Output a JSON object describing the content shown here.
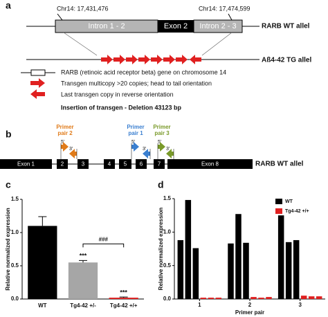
{
  "panel_a": {
    "label": "a",
    "chr_start": "Chr14: 17,431,476",
    "chr_end": "Chr14: 17,474,599",
    "intron_1": "Intron 1 - 2",
    "exon_2": "Exon 2",
    "intron_2": "Intron 2 - 3",
    "wt_allele": "RARB WT allel",
    "tg_allele": "Aß4-42 TG allel",
    "legend": [
      "RARB (retinoic acid receptor beta) gene on chromosome 14",
      "Transgen multicopy >20 copies; head to tail orientation",
      "Last transgen copy in reverse orientation"
    ],
    "insertion": "Insertion of transgen - Deletion 43123 bp"
  },
  "panel_b": {
    "label": "b",
    "exons": [
      "Exon 1",
      "2",
      "3",
      "4",
      "5",
      "6",
      "7",
      "Exon 8"
    ],
    "allele": "RARB WT allel",
    "primers": [
      {
        "name": [
          "Primer",
          "pair 2"
        ],
        "color": "#e07b1a",
        "ends": [
          "5'",
          "3'"
        ]
      },
      {
        "name": [
          "Primer",
          "pair 1"
        ],
        "color": "#3a7fd0",
        "ends": [
          "5'",
          "3'"
        ]
      },
      {
        "name": [
          "Primer",
          "pair 3"
        ],
        "color": "#7a9a2a",
        "ends": [
          "5'",
          "3'"
        ]
      }
    ]
  },
  "panel_c_label": "c",
  "panel_d_label": "d",
  "chart_data": [
    {
      "type": "bar",
      "ylabel": "Relative normalized expression",
      "categories": [
        "WT",
        "Tg4-42 +/-",
        "Tg4-42 +/+"
      ],
      "values": [
        1.1,
        0.55,
        0.02
      ],
      "errors": [
        0.14,
        0.03,
        0.01
      ],
      "colors": [
        "#000000",
        "#a6a6a6",
        "#e02020"
      ],
      "annotations": [
        "***",
        "***",
        "###"
      ],
      "ylim": [
        0,
        1.5
      ],
      "yticks": [
        {
          "value": 0,
          "label": "0.0"
        },
        0.5,
        {
          "value": 1,
          "label": "1.0"
        },
        1.5
      ]
    },
    {
      "type": "grouped_bar",
      "ylabel": "Relative normalized expression",
      "xlabel": "Primer pair",
      "categories": [
        "1",
        "2",
        "3"
      ],
      "series": [
        {
          "name": "WT",
          "color": "#000000",
          "values": [
            [
              0.88,
              1.48,
              0.76
            ],
            [
              0.83,
              1.27,
              0.84
            ],
            [
              1.25,
              0.85,
              0.88
            ]
          ]
        },
        {
          "name": "Tg4-42 +/+",
          "color": "#e02020",
          "values": [
            [
              0.02,
              0.02,
              0.02
            ],
            [
              0.03,
              0.02,
              0.03
            ],
            [
              0.05,
              0.04,
              0.04
            ]
          ]
        }
      ],
      "ylim": [
        0,
        1.5
      ],
      "yticks": [
        {
          "value": 0,
          "label": "0.0"
        },
        0.5,
        {
          "value": 1,
          "label": "1.0"
        },
        1.5
      ]
    }
  ]
}
